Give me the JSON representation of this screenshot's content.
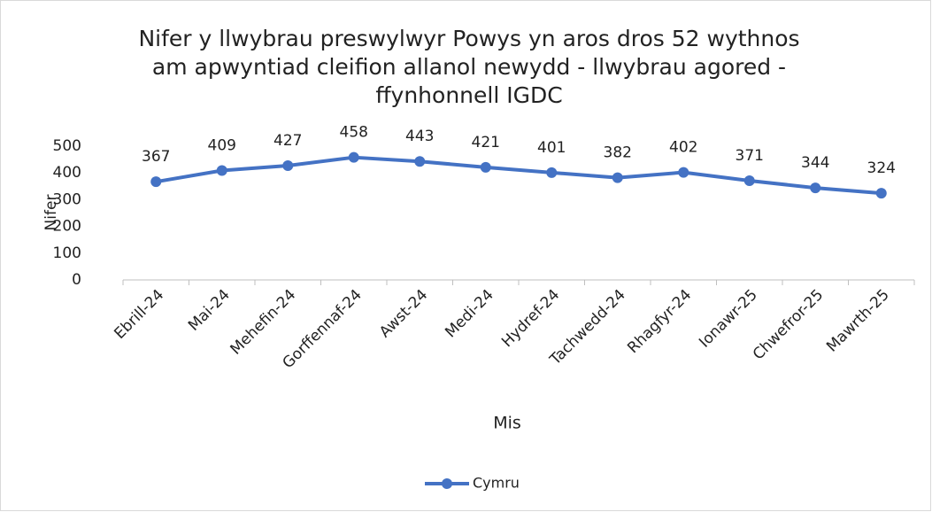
{
  "chart_data": {
    "type": "line",
    "title": "Nifer y llwybrau preswylwyr Powys yn aros dros 52 wythnos am apwyntiad cleifion allanol newydd - llwybrau agored - ffynhonnell IGDC",
    "x_label": "Mis",
    "y_label": "Nifer",
    "categories": [
      "Ebrill-24",
      "Mai-24",
      "Mehefin-24",
      "Gorffennaf-24",
      "Awst-24",
      "Medi-24",
      "Hydref-24",
      "Tachwedd-24",
      "Rhagfyr-24",
      "Ionawr-25",
      "Chwefror-25",
      "Mawrth-25"
    ],
    "series": [
      {
        "name": "Cymru",
        "color": "#4472c4",
        "values": [
          367,
          409,
          427,
          458,
          443,
          421,
          401,
          382,
          402,
          371,
          344,
          324
        ]
      }
    ],
    "ylim": [
      0,
      500
    ],
    "yticks": [
      0,
      100,
      200,
      300,
      400,
      500
    ],
    "grid": false,
    "legend": "bottom"
  }
}
